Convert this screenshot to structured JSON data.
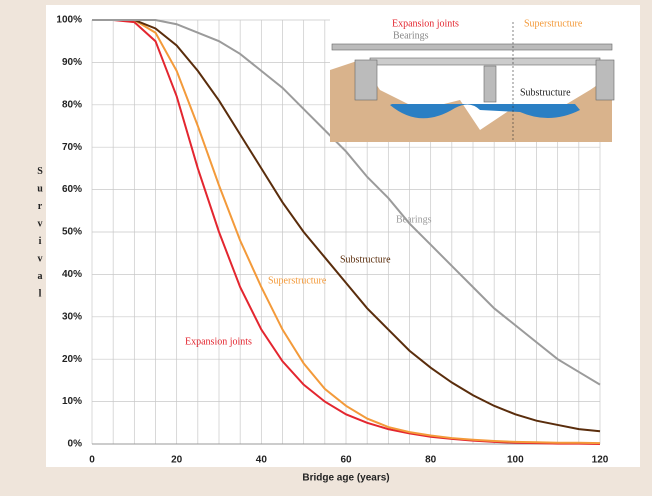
{
  "chart_data": {
    "type": "line",
    "y_label": "Survival",
    "x_label": "Bridge age (years)",
    "x": [
      0,
      5,
      10,
      15,
      20,
      25,
      30,
      35,
      40,
      45,
      50,
      55,
      60,
      65,
      70,
      75,
      80,
      85,
      90,
      95,
      100,
      105,
      110,
      115,
      120
    ],
    "series": [
      {
        "name": "Expansion joints",
        "color": "#e3262f",
        "values": [
          100,
          100,
          99.5,
          95,
          82,
          65,
          50,
          37,
          27,
          19.5,
          14,
          10,
          7,
          5,
          3.5,
          2.5,
          1.7,
          1.2,
          0.8,
          0.5,
          0.3,
          0.2,
          0.1,
          0.1,
          0
        ]
      },
      {
        "name": "Superstructure",
        "color": "#f39a3a",
        "values": [
          100,
          100,
          100,
          97,
          88,
          75,
          61,
          48,
          37,
          27,
          19,
          13,
          9,
          6,
          4,
          2.8,
          2,
          1.4,
          1,
          0.7,
          0.5,
          0.4,
          0.3,
          0.3,
          0.2
        ]
      },
      {
        "name": "Substructure",
        "color": "#5a2d0c",
        "values": [
          100,
          100,
          100,
          98,
          94,
          88,
          81,
          73,
          65,
          57,
          50,
          44,
          38,
          32,
          27,
          22,
          18,
          14.5,
          11.5,
          9,
          7,
          5.5,
          4.5,
          3.5,
          3
        ]
      },
      {
        "name": "Bearings",
        "color": "#9b9b9b",
        "values": [
          100,
          100,
          100,
          100,
          99,
          97,
          95,
          92,
          88,
          84,
          79,
          74,
          69,
          63,
          58,
          52,
          47,
          42,
          37,
          32,
          28,
          24,
          20,
          17,
          14
        ]
      }
    ],
    "xlim": [
      0,
      120
    ],
    "ylim": [
      0,
      100
    ],
    "xticks": [
      0,
      20,
      40,
      60,
      80,
      100,
      120
    ],
    "x_minor_ticks": [
      0,
      5,
      10,
      15,
      20,
      25,
      30,
      35,
      40,
      45,
      50,
      55,
      60,
      65,
      70,
      75,
      80,
      85,
      90,
      95,
      100,
      105,
      110,
      115,
      120
    ],
    "yticks": [
      {
        "value": 0,
        "label": "0%"
      },
      {
        "value": 10,
        "label": "10%"
      },
      {
        "value": 20,
        "label": "20%"
      },
      {
        "value": 30,
        "label": "30%"
      },
      {
        "value": 40,
        "label": "40%"
      },
      {
        "value": 50,
        "label": "50%"
      },
      {
        "value": 60,
        "label": "60%"
      },
      {
        "value": 70,
        "label": "70%"
      },
      {
        "value": 80,
        "label": "80%"
      },
      {
        "value": 90,
        "label": "90%"
      },
      {
        "value": 100,
        "label": "100%"
      }
    ],
    "grid": true,
    "inset": {
      "labels": [
        "Expansion joints",
        "Superstructure",
        "Bearings",
        "Substructure"
      ]
    }
  }
}
